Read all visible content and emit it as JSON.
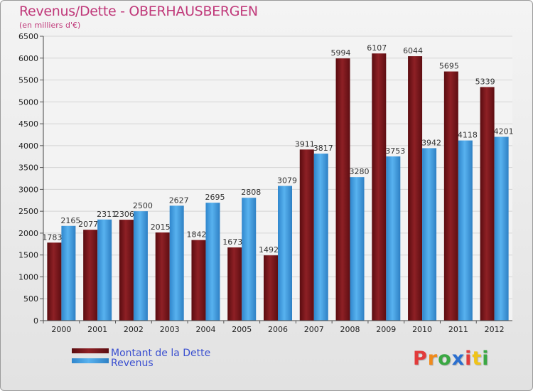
{
  "header": {
    "title": "Revenus/Dette - OBERHAUSBERGEN",
    "subtitle": "(en milliers d'€)"
  },
  "logo": {
    "text": "Proxiti",
    "letters": [
      "P",
      "r",
      "o",
      "x",
      "i",
      "t",
      "i"
    ],
    "colors": [
      "#e23b3b",
      "#f08a1c",
      "#3aa843",
      "#2b6fcf",
      "#e23b3b",
      "#f0c419",
      "#3aa843"
    ]
  },
  "chart_data": {
    "type": "bar",
    "title": "Revenus/Dette - OBERHAUSBERGEN",
    "ylabel": "(en milliers d'€)",
    "categories": [
      "2000",
      "2001",
      "2002",
      "2003",
      "2004",
      "2005",
      "2006",
      "2007",
      "2008",
      "2009",
      "2010",
      "2011",
      "2012"
    ],
    "ylim": [
      0,
      6500
    ],
    "yticks": [
      0,
      500,
      1000,
      1500,
      2000,
      2500,
      3000,
      3500,
      4000,
      4500,
      5000,
      5500,
      6000,
      6500
    ],
    "grid": true,
    "legend_position": "bottom-left",
    "series": [
      {
        "name": "Montant de la Dette",
        "color": "#7a1418",
        "values": [
          1783,
          2077,
          2306,
          2015,
          1842,
          1673,
          1492,
          3911,
          5994,
          6107,
          6044,
          5695,
          5339
        ]
      },
      {
        "name": "Revenus",
        "color": "#3f9de0",
        "values": [
          2165,
          2311,
          2500,
          2627,
          2695,
          2808,
          3079,
          3817,
          3280,
          3753,
          3942,
          4118,
          4201
        ]
      }
    ]
  }
}
